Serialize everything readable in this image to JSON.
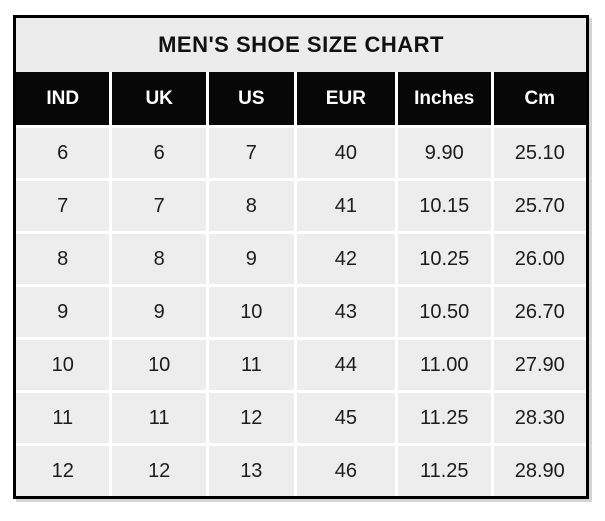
{
  "chart_data": {
    "type": "table",
    "title": "MEN'S SHOE SIZE CHART",
    "columns": [
      "IND",
      "UK",
      "US",
      "EUR",
      "Inches",
      "Cm"
    ],
    "rows": [
      [
        "6",
        "6",
        "7",
        "40",
        "9.90",
        "25.10"
      ],
      [
        "7",
        "7",
        "8",
        "41",
        "10.15",
        "25.70"
      ],
      [
        "8",
        "8",
        "9",
        "42",
        "10.25",
        "26.00"
      ],
      [
        "9",
        "9",
        "10",
        "43",
        "10.50",
        "26.70"
      ],
      [
        "10",
        "10",
        "11",
        "44",
        "11.00",
        "27.90"
      ],
      [
        "11",
        "11",
        "12",
        "45",
        "11.25",
        "28.30"
      ],
      [
        "12",
        "12",
        "13",
        "46",
        "11.25",
        "28.90"
      ]
    ],
    "layout": {
      "grid": "on",
      "gridline_color": "#ffffff",
      "header_position": "top"
    }
  },
  "colors": {
    "page_background": "#ffffff",
    "title_background": "#ececec",
    "header_background": "#070707",
    "header_text": "#ffffff",
    "cell_background": "#ededed",
    "cell_text": "#1c1c1c",
    "outer_border": "#000000",
    "shadow": "#d4d4d4"
  }
}
